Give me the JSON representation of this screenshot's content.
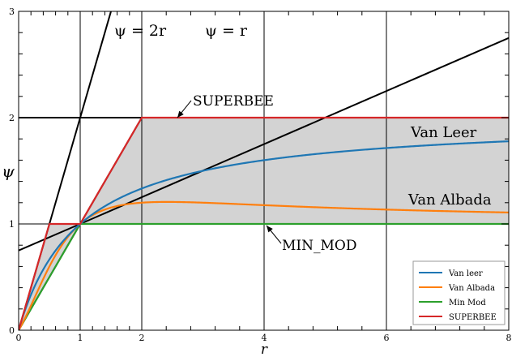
{
  "chart_data": {
    "type": "line",
    "title": "",
    "xlabel": "r",
    "ylabel": "ψ",
    "x_scale": "piecewise: x<2 maps r in [0,2], x>=2 maps r in [2,8] (slope-limiter diagram convention)",
    "xlim": [
      0,
      8
    ],
    "ylim": [
      0,
      3
    ],
    "x_ticks": [
      0,
      1,
      2,
      4,
      6,
      8
    ],
    "x_tick_labels": [
      "0",
      "1",
      "2",
      "4",
      "6",
      "8"
    ],
    "y_ticks": [
      0,
      1,
      2,
      3
    ],
    "y_tick_labels": [
      "0",
      "1",
      "2",
      "3"
    ],
    "grid": true,
    "series": [
      {
        "name": "Van leer",
        "color": "#1f77b4",
        "formula": "(r+|r|)/(1+r)",
        "x": [
          0,
          0.5,
          1,
          2,
          3,
          4,
          5,
          6,
          7,
          8
        ],
        "values": [
          0,
          0.667,
          1,
          1.333,
          1.5,
          1.6,
          1.667,
          1.714,
          1.75,
          1.778
        ]
      },
      {
        "name": "Van Albada",
        "color": "#ff7f0e",
        "formula": "(r^2+r)/(1+r^2)",
        "x": [
          0,
          0.5,
          1,
          2,
          3,
          4,
          5,
          6,
          7,
          8
        ],
        "values": [
          0,
          0.6,
          1,
          1.2,
          1.2,
          1.176,
          1.154,
          1.135,
          1.12,
          1.108
        ]
      },
      {
        "name": "Min Mod",
        "color": "#2ca02c",
        "formula": "max(0, min(1, r))",
        "x": [
          0,
          1,
          8
        ],
        "values": [
          0,
          1,
          1
        ]
      },
      {
        "name": "SUPERBEE",
        "color": "#d62728",
        "formula": "max(0, min(2r,1), min(r,2))",
        "x": [
          0,
          0.5,
          1,
          2,
          8
        ],
        "values": [
          0,
          1,
          1,
          2,
          2
        ]
      }
    ],
    "reference_lines": [
      {
        "label": "ψ = 2r",
        "slope": 2
      },
      {
        "label": "ψ = r",
        "slope": 1
      }
    ],
    "annotations": [
      {
        "text": "SUPERBEE",
        "points_to": [
          2,
          2
        ]
      },
      {
        "text": "Van Leer",
        "near_series": "Van leer"
      },
      {
        "text": "Van Albada",
        "near_series": "Van Albada"
      },
      {
        "text": "MIN_MOD",
        "points_to": [
          4,
          1
        ]
      }
    ],
    "shaded_region": "between MIN_MOD and SUPERBEE (TVD region)",
    "legend": {
      "placement": "bottom-right",
      "entries": [
        "Van leer",
        "Van Albada",
        "Min Mod",
        "SUPERBEE"
      ]
    }
  }
}
